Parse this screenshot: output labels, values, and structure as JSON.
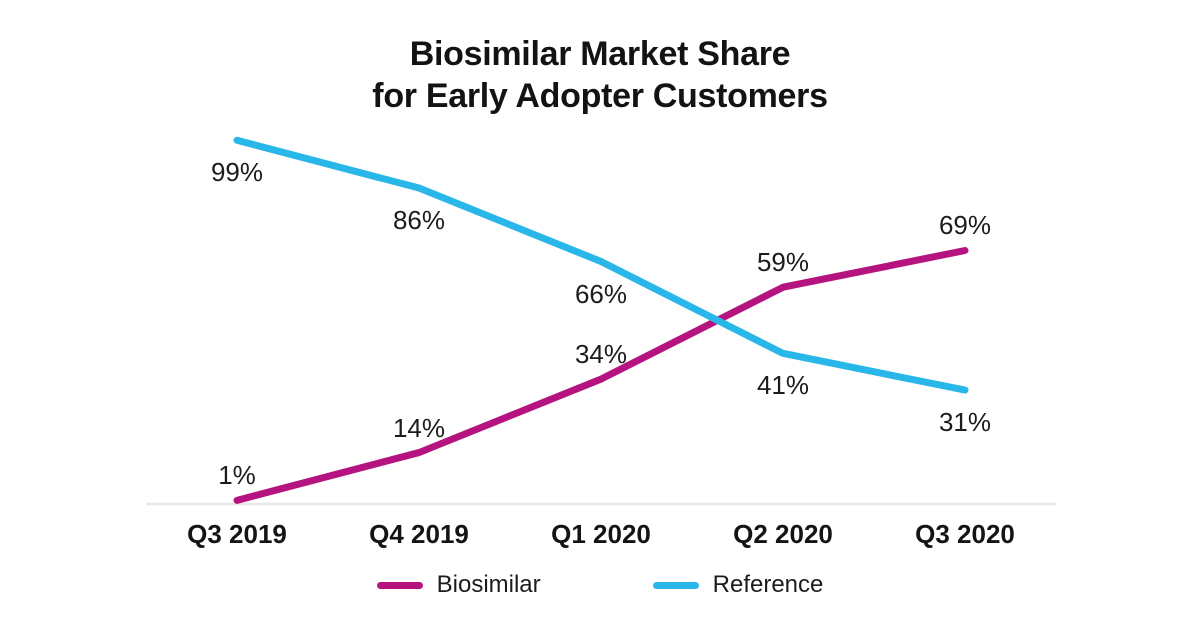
{
  "chart_data": {
    "type": "line",
    "title": "Biosimilar Market Share for Early Adopter Customers",
    "title_lines": [
      "Biosimilar Market Share",
      "for Early Adopter Customers"
    ],
    "categories": [
      "Q3 2019",
      "Q4 2019",
      "Q1 2020",
      "Q2 2020",
      "Q3 2020"
    ],
    "series": [
      {
        "name": "Biosimilar",
        "values": [
          1,
          14,
          34,
          59,
          69
        ],
        "color": "#b5137f",
        "label_position": "above"
      },
      {
        "name": "Reference",
        "values": [
          99,
          86,
          66,
          41,
          31
        ],
        "color": "#29b6e8",
        "label_position": "below"
      }
    ],
    "value_suffix": "%",
    "xlabel": "",
    "ylabel": "",
    "ylim": [
      0,
      100
    ],
    "grid": false,
    "legend_position": "bottom",
    "axis_color": "#e8e8e8",
    "text_color": "#1c1c1c",
    "background_color": "#ffffff",
    "line_width": 7
  }
}
